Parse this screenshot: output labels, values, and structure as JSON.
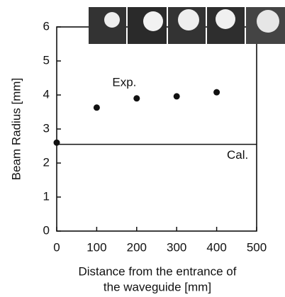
{
  "chart_data": {
    "type": "scatter",
    "xlabel": [
      "Distance from the entrance of",
      "the waveguide [mm]"
    ],
    "ylabel": "Beam Radius [mm]",
    "xlim": [
      0,
      500
    ],
    "ylim": [
      0,
      6
    ],
    "xticks": [
      0,
      100,
      200,
      300,
      400,
      500
    ],
    "yticks": [
      0,
      1,
      2,
      3,
      4,
      5,
      6
    ],
    "series": [
      {
        "name": "Exp.",
        "color": "#111111",
        "x": [
          0,
          100,
          200,
          300,
          400
        ],
        "values": [
          2.6,
          3.63,
          3.9,
          3.96,
          4.08
        ]
      }
    ],
    "hlines": [
      {
        "name": "Cal.",
        "value": 2.55,
        "color": "#111111"
      }
    ]
  }
}
